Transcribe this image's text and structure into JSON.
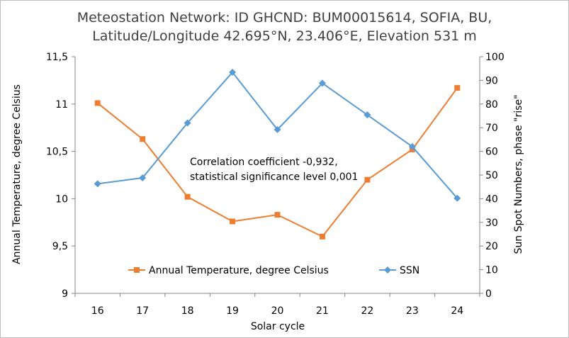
{
  "chart_data": {
    "type": "line",
    "title": [
      "Meteostation Network: ID GHCND: BUM00015614, SOFIA, BU,",
      "Latitude/Longitude 42.695°N, 23.406°E, Elevation 531 m"
    ],
    "xlabel": "Solar cycle",
    "ylabel_left": "Annual Temperature, degree Celsius",
    "ylabel_right": "Sun Spot Numbers, phase \"rise\"",
    "categories": [
      "16",
      "17",
      "18",
      "19",
      "20",
      "21",
      "22",
      "23",
      "24"
    ],
    "y_left": {
      "lim": [
        9,
        11.5
      ],
      "ticks": [
        "9",
        "9,5",
        "10",
        "10,5",
        "11",
        "11,5"
      ],
      "tick_values": [
        9,
        9.5,
        10,
        10.5,
        11,
        11.5
      ]
    },
    "y_right": {
      "lim": [
        0,
        100
      ],
      "ticks": [
        "0",
        "10",
        "20",
        "30",
        "40",
        "50",
        "60",
        "70",
        "80",
        "90",
        "100"
      ],
      "tick_values": [
        0,
        10,
        20,
        30,
        40,
        50,
        60,
        70,
        80,
        90,
        100
      ]
    },
    "series": [
      {
        "name": "Annual Temperature, degree Celsius",
        "axis": "left",
        "marker": "square",
        "color": "#ed7d31",
        "values": [
          11.01,
          10.63,
          10.02,
          9.76,
          9.83,
          9.6,
          10.2,
          10.52,
          11.17
        ]
      },
      {
        "name": "SSN",
        "axis": "right",
        "marker": "diamond",
        "color": "#5b9bd5",
        "values": [
          46.3,
          48.8,
          72.0,
          93.4,
          69.2,
          88.8,
          75.4,
          62.0,
          40.2
        ]
      }
    ],
    "annotation": [
      "Correlation coefficient -0,932,",
      "statistical significance level 0,001"
    ],
    "legend_position": "bottom-inside",
    "grid": false
  }
}
